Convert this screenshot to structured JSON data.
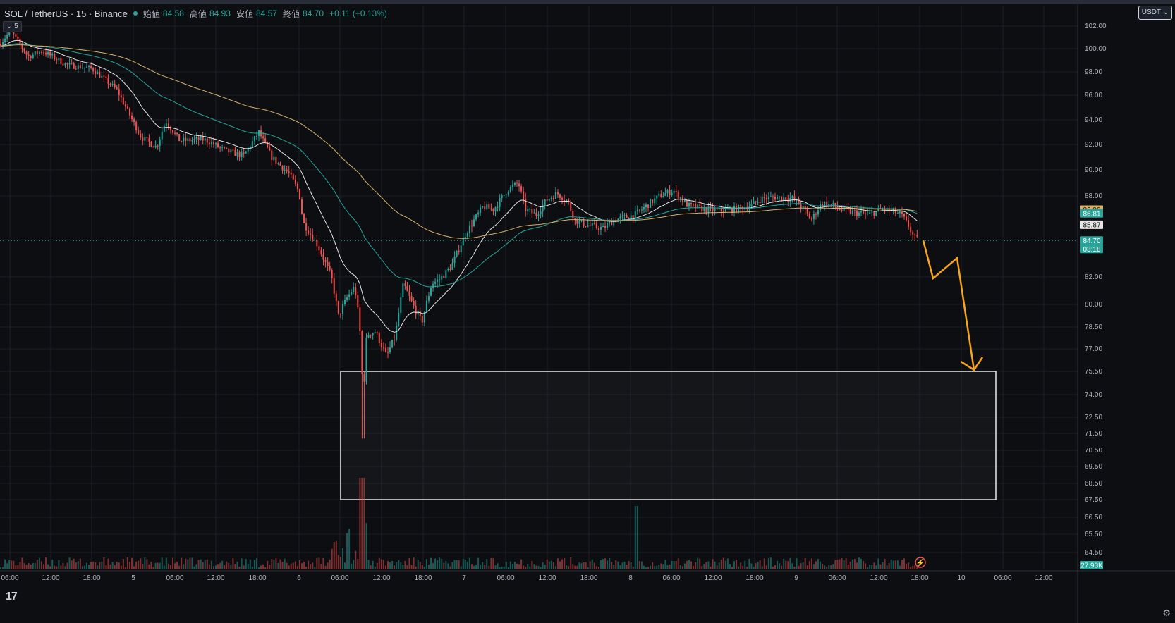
{
  "header": {
    "symbol": "SOL / TetherUS · 15 · Binance",
    "open_label": "始値",
    "open": "84.58",
    "high_label": "高値",
    "high": "84.93",
    "low_label": "安値",
    "low": "84.57",
    "close_label": "終値",
    "close": "84.70",
    "change": "+0.11 (+0.13%)",
    "interval_chip": "5",
    "currency": "USDT"
  },
  "colors": {
    "background": "#0d0e12",
    "up": "#26a69a",
    "down": "#ef5350",
    "ema_fast": "#e6e6e6",
    "ema_mid": "#26a69a",
    "ema_slow": "#d8b26d",
    "arrow": "#f7a51c",
    "zone_border": "#e8e8e8"
  },
  "icons": {
    "logo": "tradingview-logo-icon",
    "settings": "gear-icon",
    "replay": "lightning-circle-icon"
  },
  "chart_data": {
    "type": "candlestick",
    "timeframe": "15",
    "x_ticks": [
      "06:00",
      "12:00",
      "18:00",
      "5",
      "06:00",
      "12:00",
      "18:00",
      "6",
      "06:00",
      "12:00",
      "18:00",
      "7",
      "06:00",
      "12:00",
      "18:00",
      "8",
      "06:00",
      "12:00",
      "18:00",
      "9",
      "06:00",
      "12:00",
      "18:00",
      "10",
      "06:00",
      "12:00"
    ],
    "y_ticks": [
      "102.00",
      "100.00",
      "98.00",
      "96.00",
      "94.00",
      "92.00",
      "90.00",
      "88.00",
      "82.00",
      "80.00",
      "78.50",
      "77.00",
      "75.50",
      "74.00",
      "72.50",
      "71.50",
      "70.50",
      "69.50",
      "68.50",
      "67.50",
      "66.50",
      "65.50",
      "64.50"
    ],
    "price_path": [
      [
        0,
        100.4
      ],
      [
        15,
        101.6
      ],
      [
        40,
        99.3
      ],
      [
        60,
        99.8
      ],
      [
        95,
        98.6
      ],
      [
        130,
        98.3
      ],
      [
        165,
        96.5
      ],
      [
        200,
        92.6
      ],
      [
        222,
        91.8
      ],
      [
        235,
        93.9
      ],
      [
        255,
        92.3
      ],
      [
        290,
        92.4
      ],
      [
        320,
        91.5
      ],
      [
        345,
        91.1
      ],
      [
        367,
        93.0
      ],
      [
        385,
        91.0
      ],
      [
        410,
        89.7
      ],
      [
        424,
        88.3
      ],
      [
        430,
        86.0
      ],
      [
        450,
        84.4
      ],
      [
        470,
        82.0
      ],
      [
        480,
        79.2
      ],
      [
        492,
        80.5
      ],
      [
        503,
        81.3
      ],
      [
        510,
        78.5
      ],
      [
        515,
        73.8
      ],
      [
        520,
        78.0
      ],
      [
        532,
        78.2
      ],
      [
        548,
        76.5
      ],
      [
        560,
        77.8
      ],
      [
        572,
        81.5
      ],
      [
        585,
        80.0
      ],
      [
        598,
        78.8
      ],
      [
        612,
        81.5
      ],
      [
        625,
        81.9
      ],
      [
        640,
        82.8
      ],
      [
        660,
        85.2
      ],
      [
        672,
        86.2
      ],
      [
        685,
        87.2
      ],
      [
        700,
        87.0
      ],
      [
        720,
        88.5
      ],
      [
        735,
        89.0
      ],
      [
        745,
        87.0
      ],
      [
        760,
        86.6
      ],
      [
        775,
        87.7
      ],
      [
        790,
        88.2
      ],
      [
        805,
        87.6
      ],
      [
        815,
        86.2
      ],
      [
        835,
        85.8
      ],
      [
        855,
        85.6
      ],
      [
        870,
        86.2
      ],
      [
        900,
        86.6
      ],
      [
        915,
        87.2
      ],
      [
        935,
        88.0
      ],
      [
        955,
        88.4
      ],
      [
        975,
        87.3
      ],
      [
        1000,
        87.0
      ],
      [
        1020,
        86.9
      ],
      [
        1040,
        87.0
      ],
      [
        1065,
        87.3
      ],
      [
        1080,
        87.8
      ],
      [
        1100,
        87.9
      ],
      [
        1125,
        87.8
      ],
      [
        1140,
        87.0
      ],
      [
        1150,
        86.2
      ],
      [
        1165,
        87.5
      ],
      [
        1180,
        87.3
      ],
      [
        1195,
        86.9
      ],
      [
        1210,
        86.8
      ],
      [
        1230,
        86.6
      ],
      [
        1250,
        87.0
      ],
      [
        1265,
        86.9
      ],
      [
        1278,
        86.6
      ],
      [
        1288,
        85.8
      ],
      [
        1296,
        84.9
      ],
      [
        1303,
        84.7
      ]
    ],
    "ema_fast": {
      "name": "EMA",
      "value": "85.87"
    },
    "ema_mid": {
      "name": "EMA",
      "value": "86.81"
    },
    "ema_slow": {
      "name": "EMA",
      "value": "86.98"
    },
    "last_price": "84.70",
    "countdown": "03:18",
    "volume_label": "27.93K",
    "zone": {
      "price_top": 75.5,
      "price_bottom": 67.5
    },
    "projection": [
      [
        84.7,
        "18:00 day 9"
      ],
      [
        81.9,
        ""
      ],
      [
        83.4,
        ""
      ],
      [
        75.6,
        "~03:00 day 10"
      ]
    ]
  }
}
